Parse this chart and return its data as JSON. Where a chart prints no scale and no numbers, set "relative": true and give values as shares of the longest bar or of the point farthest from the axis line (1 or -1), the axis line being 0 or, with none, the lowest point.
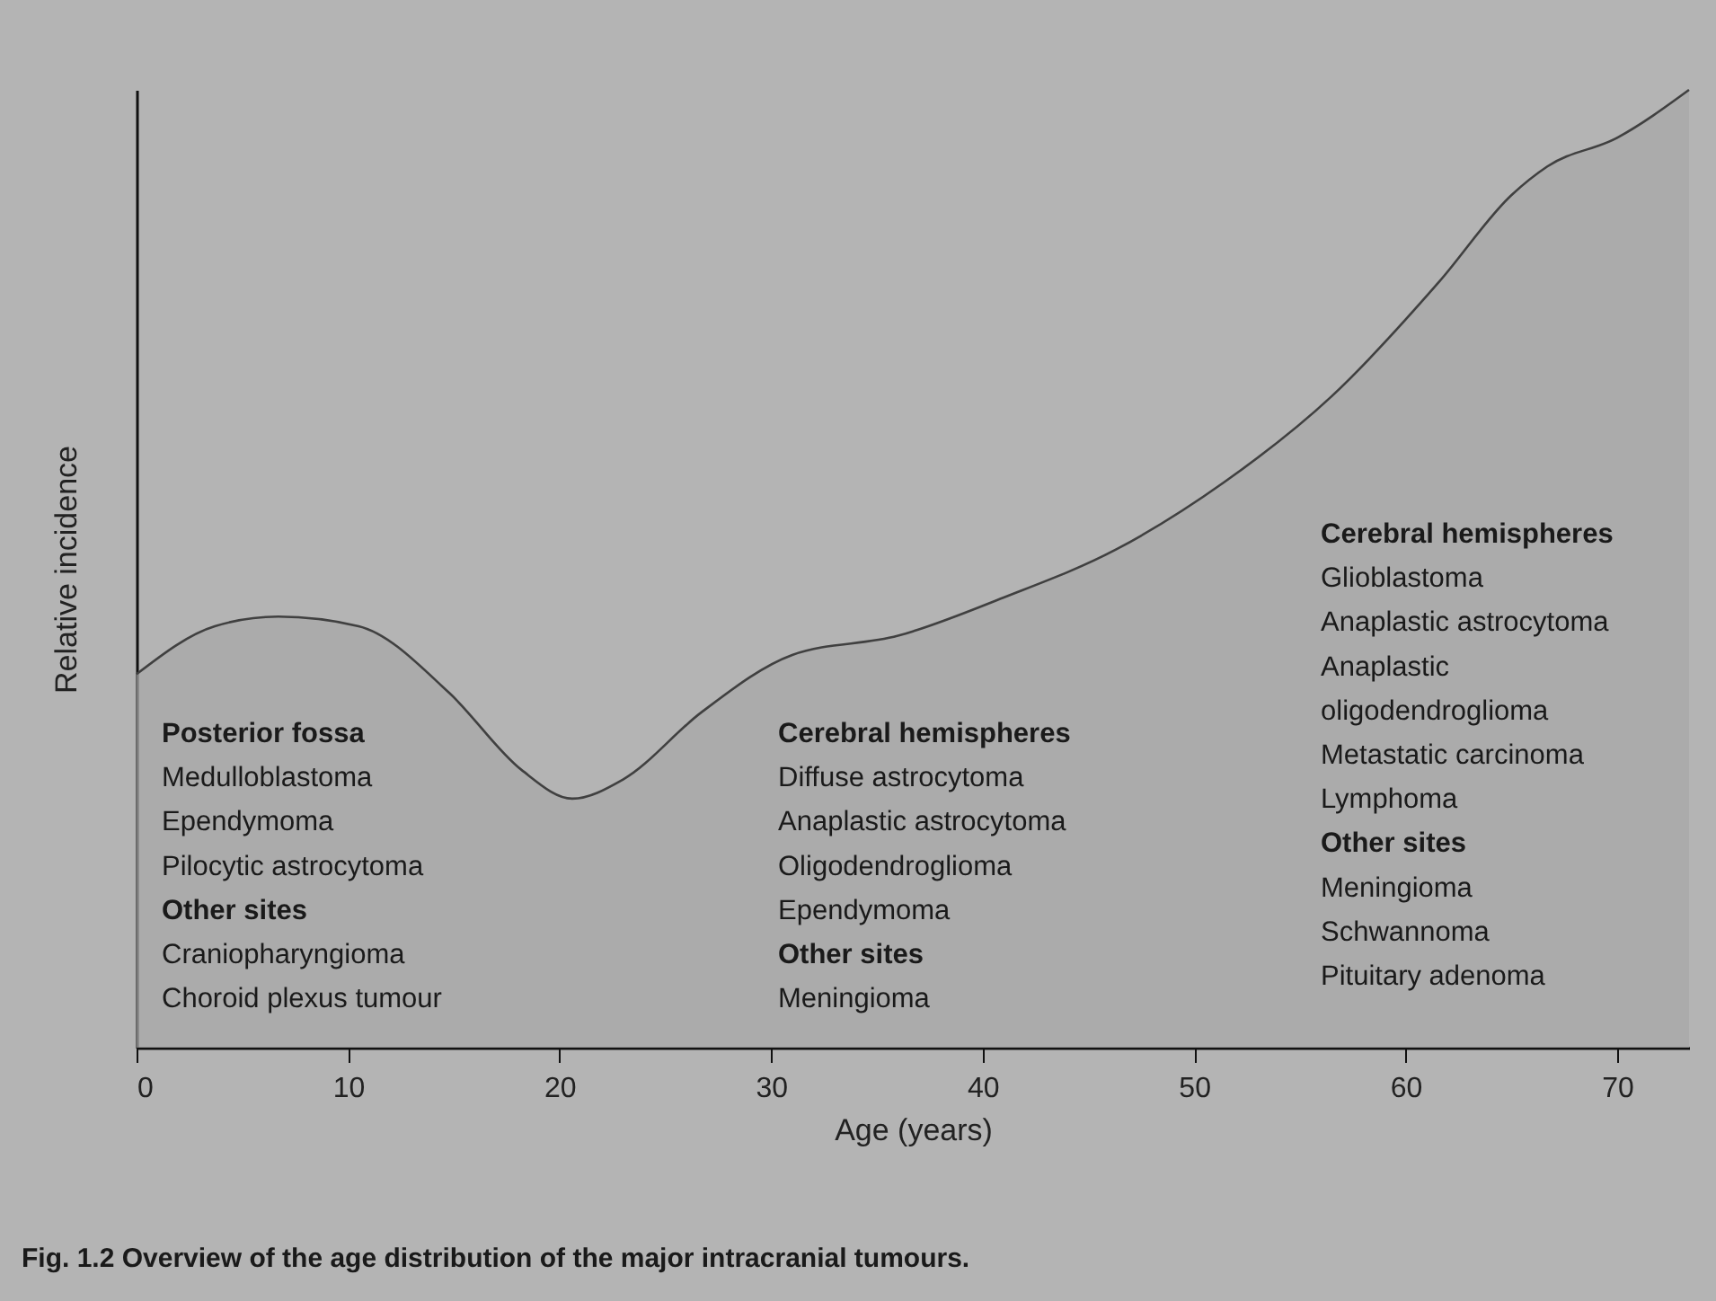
{
  "chart_data": {
    "type": "area",
    "relative": true,
    "xlabel": "Age (years)",
    "ylabel": "Relative incidence",
    "xlim": [
      0,
      73.4
    ],
    "xticks": [
      0,
      10,
      20,
      30,
      40,
      50,
      60,
      70
    ],
    "grid": false,
    "series": [
      {
        "color": "#a6a6a6",
        "x": [
          0,
          3.7,
          6.7,
          10.5,
          14.8,
          18.2,
          20.6,
          23,
          26.7,
          31,
          36,
          41,
          46.3,
          51.4,
          56.5,
          61.6,
          65,
          66.7,
          70,
          73.4
        ],
        "values": [
          0.39,
          0.44,
          0.45,
          0.44,
          0.37,
          0.29,
          0.26,
          0.28,
          0.35,
          0.41,
          0.43,
          0.47,
          0.52,
          0.59,
          0.68,
          0.8,
          0.89,
          0.92,
          0.95,
          1.0
        ]
      }
    ],
    "annotations": [
      "Posterior fossa\nMedulloblastoma\nEpendymoma\nPilocytic astrocytoma\nOther sites\nCraniopharyngioma\nChoroid plexus tumour",
      "Cerebral hemispheres\nDiffuse astrocytoma\nAnaplastic astrocytoma\nOligodendroglioma\nEpendymoma\nOther sites\nMeningioma",
      "Cerebral hemispheres\nGlioblastoma\nAnaplastic astrocytoma\nAnaplastic\n oligodendroglioma\nMetastatic carcinoma\nLymphoma\nOther sites\nMeningioma\nSchwannoma\nPituitary adenoma",
      "Fig. 1.2 Overview of the age distribution of the major intracranial tumours."
    ]
  }
}
